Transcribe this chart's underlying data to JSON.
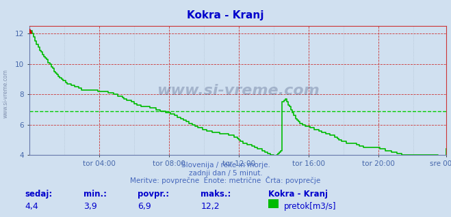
{
  "title": "Kokra - Kranj",
  "title_color": "#0000cc",
  "bg_color": "#d0e0f0",
  "plot_bg_color": "#d0e0f0",
  "line_color": "#00bb00",
  "avg_line_color": "#00cc00",
  "avg_value": 6.9,
  "ylim": [
    4,
    12.5
  ],
  "yticks": [
    4,
    6,
    8,
    10,
    12
  ],
  "tick_color": "#4466aa",
  "grid_color_red": "#cc3333",
  "grid_color_blue": "#aabbcc",
  "x_labels": [
    "tor 04:00",
    "tor 08:00",
    "tor 12:00",
    "tor 16:00",
    "tor 20:00",
    "sre 00:00"
  ],
  "x_tick_pos": [
    48,
    96,
    144,
    192,
    240,
    287
  ],
  "subtitle1": "Slovenija / reke in morje.",
  "subtitle2": "zadnji dan / 5 minut.",
  "subtitle3": "Meritve: povprečne  Enote: metrične  Črta: povprečje",
  "footer_color": "#4466bb",
  "stat_color": "#0000cc",
  "stat_sedaj": "4,4",
  "stat_min": "3,9",
  "stat_povpr": "6,9",
  "stat_maks": "12,2",
  "legend_label": "pretok[m3/s]",
  "watermark": "www.si-vreme.com",
  "watermark_color": "#203060",
  "flow_data": [
    12.2,
    12.2,
    12.0,
    11.8,
    11.5,
    11.3,
    11.1,
    10.9,
    10.8,
    10.6,
    10.5,
    10.4,
    10.3,
    10.1,
    10.0,
    9.8,
    9.7,
    9.5,
    9.4,
    9.3,
    9.2,
    9.1,
    9.0,
    8.9,
    8.9,
    8.8,
    8.7,
    8.7,
    8.7,
    8.6,
    8.6,
    8.5,
    8.5,
    8.5,
    8.4,
    8.4,
    8.3,
    8.3,
    8.3,
    8.3,
    8.3,
    8.3,
    8.3,
    8.3,
    8.3,
    8.3,
    8.3,
    8.2,
    8.2,
    8.2,
    8.2,
    8.2,
    8.2,
    8.2,
    8.1,
    8.1,
    8.1,
    8.1,
    8.0,
    8.0,
    8.0,
    7.9,
    7.9,
    7.9,
    7.8,
    7.7,
    7.7,
    7.6,
    7.6,
    7.6,
    7.5,
    7.5,
    7.4,
    7.4,
    7.3,
    7.3,
    7.3,
    7.2,
    7.2,
    7.2,
    7.2,
    7.2,
    7.2,
    7.1,
    7.1,
    7.1,
    7.1,
    7.0,
    7.0,
    7.0,
    6.9,
    6.9,
    6.9,
    6.9,
    6.8,
    6.8,
    6.8,
    6.7,
    6.7,
    6.7,
    6.6,
    6.6,
    6.5,
    6.5,
    6.4,
    6.4,
    6.3,
    6.3,
    6.2,
    6.2,
    6.1,
    6.1,
    6.0,
    6.0,
    5.9,
    5.9,
    5.8,
    5.8,
    5.8,
    5.7,
    5.7,
    5.7,
    5.6,
    5.6,
    5.6,
    5.6,
    5.5,
    5.5,
    5.5,
    5.5,
    5.5,
    5.4,
    5.4,
    5.4,
    5.4,
    5.4,
    5.4,
    5.3,
    5.3,
    5.3,
    5.3,
    5.2,
    5.2,
    5.1,
    5.0,
    4.9,
    4.9,
    4.8,
    4.8,
    4.8,
    4.7,
    4.7,
    4.7,
    4.6,
    4.6,
    4.5,
    4.5,
    4.4,
    4.4,
    4.4,
    4.3,
    4.3,
    4.2,
    4.2,
    4.1,
    4.1,
    4.0,
    4.0,
    3.9,
    3.9,
    4.0,
    4.1,
    4.2,
    4.3,
    7.5,
    7.6,
    7.7,
    7.5,
    7.3,
    7.2,
    7.0,
    6.8,
    6.6,
    6.4,
    6.3,
    6.2,
    6.1,
    6.1,
    6.0,
    6.0,
    5.9,
    5.9,
    5.9,
    5.8,
    5.8,
    5.8,
    5.7,
    5.7,
    5.7,
    5.6,
    5.6,
    5.5,
    5.5,
    5.5,
    5.4,
    5.4,
    5.4,
    5.3,
    5.3,
    5.3,
    5.2,
    5.2,
    5.1,
    5.0,
    5.0,
    4.9,
    4.9,
    4.9,
    4.8,
    4.8,
    4.8,
    4.8,
    4.8,
    4.8,
    4.8,
    4.7,
    4.7,
    4.6,
    4.6,
    4.6,
    4.5,
    4.5,
    4.5,
    4.5,
    4.5,
    4.5,
    4.5,
    4.5,
    4.5,
    4.5,
    4.5,
    4.4,
    4.4,
    4.4,
    4.4,
    4.3,
    4.3,
    4.3,
    4.3,
    4.2,
    4.2,
    4.2,
    4.2,
    4.1,
    4.1,
    4.1,
    4.0,
    4.0,
    4.0,
    4.0,
    4.0,
    4.0,
    4.0,
    4.0,
    4.0,
    4.0,
    4.0,
    4.0,
    4.0,
    4.0,
    4.0,
    4.0,
    4.0,
    4.0,
    4.0,
    4.0,
    4.0,
    4.0,
    4.0,
    4.0,
    4.0,
    3.9,
    3.9,
    3.9,
    3.9,
    3.9,
    3.9,
    4.4
  ]
}
